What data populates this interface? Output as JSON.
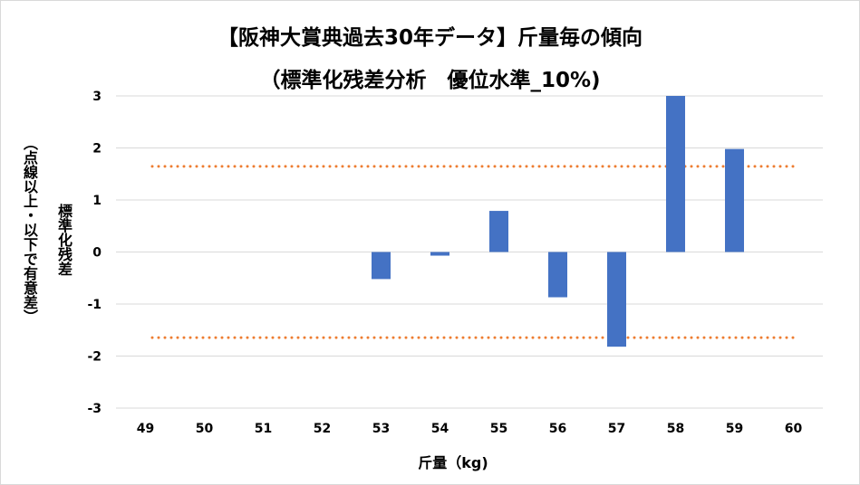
{
  "title_line1": "【阪神大賞典過去30年データ】斤量毎の傾向",
  "title_line2": "（標準化残差分析　優位水準_10%)",
  "colors": {
    "bar": "#4472c4",
    "threshold": "#ed7d31",
    "grid": "#d9d9d9"
  },
  "chart_data": {
    "type": "bar",
    "categories": [
      "49",
      "50",
      "51",
      "52",
      "53",
      "54",
      "55",
      "56",
      "57",
      "58",
      "59",
      "60"
    ],
    "values": [
      null,
      null,
      null,
      null,
      -0.52,
      -0.07,
      0.79,
      -0.87,
      -1.82,
      3.0,
      1.98,
      null
    ],
    "ylim": [
      -3,
      3
    ],
    "yticks": [
      "3",
      "2",
      "1",
      "0",
      "-1",
      "-2",
      "-3"
    ],
    "ytick_values": [
      3,
      2,
      1,
      0,
      -1,
      -2,
      -3
    ],
    "thresholds": [
      1.645,
      -1.645
    ],
    "xlabel": "斤量（kg)",
    "ylabel_main": "標準化残差",
    "ylabel_sub": "（点線以上・以下で有意差）",
    "grid": true,
    "legend": "none"
  }
}
